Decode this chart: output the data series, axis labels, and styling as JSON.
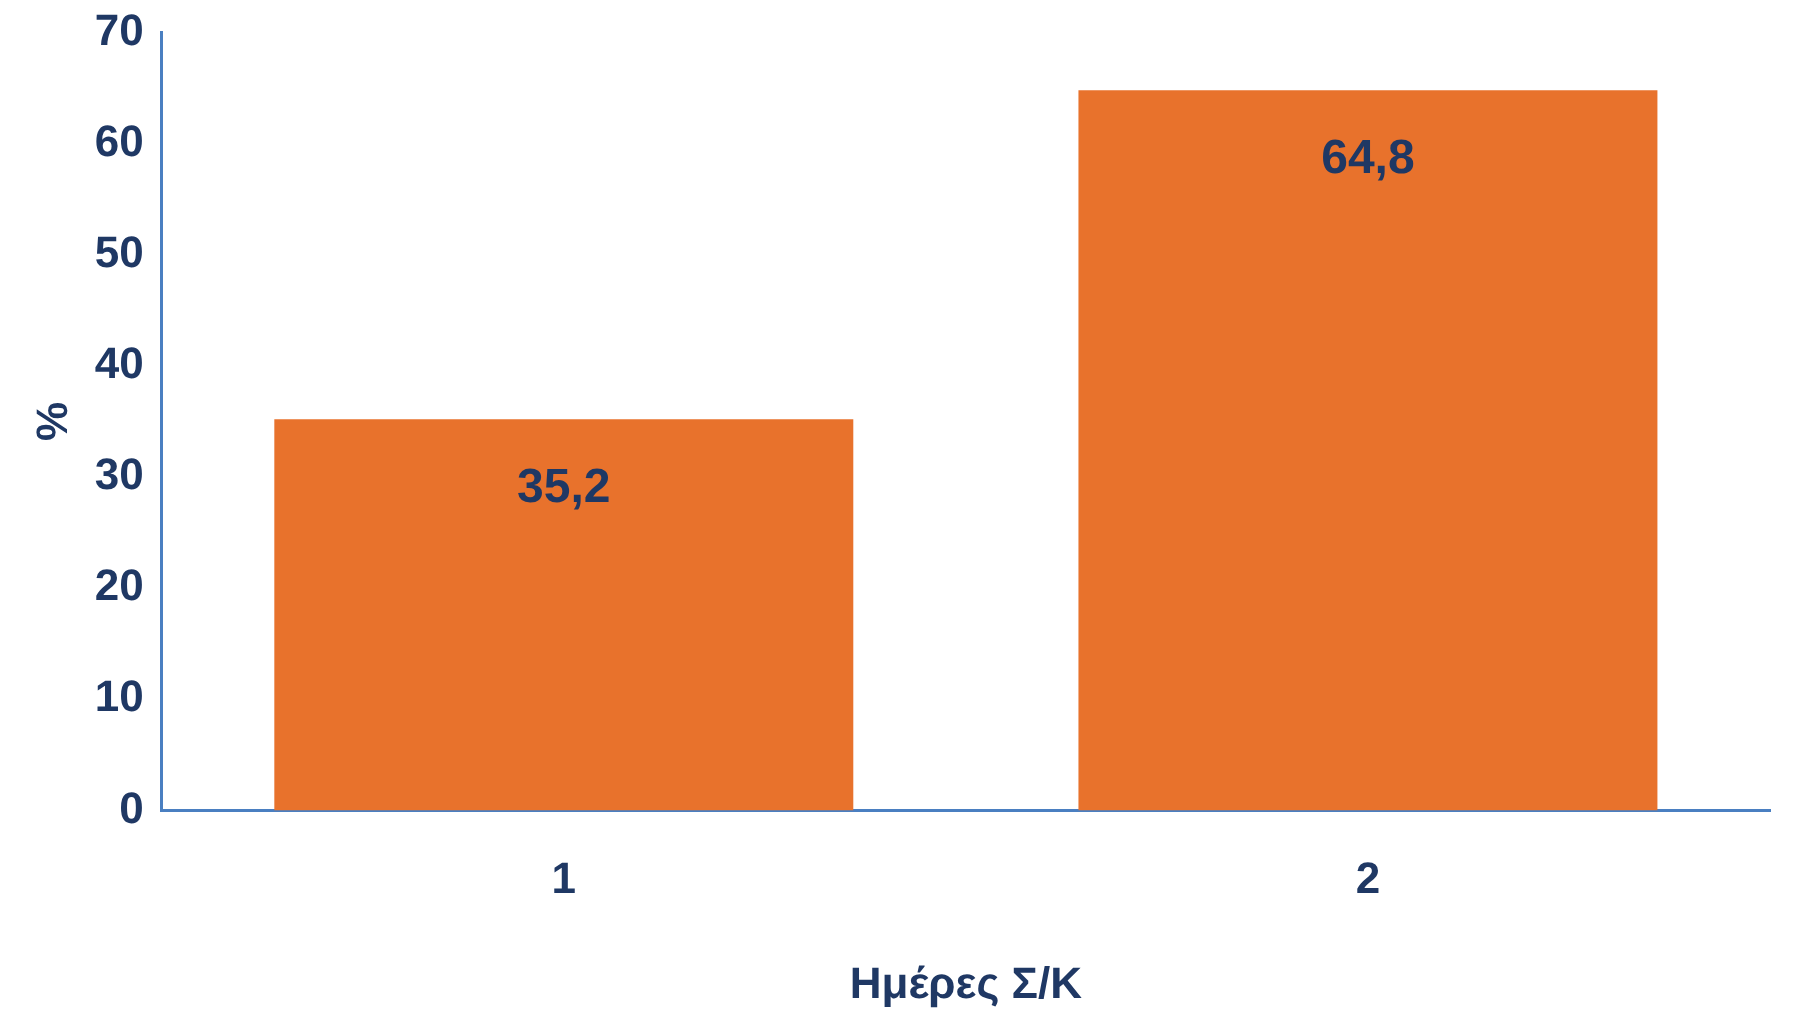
{
  "chart_data": {
    "type": "bar",
    "xlabel": "Ημέρες Σ/Κ",
    "ylabel": "%",
    "categories": [
      "1",
      "2"
    ],
    "values": [
      35.2,
      64.8
    ],
    "value_labels": [
      "35,2",
      "64,8"
    ],
    "color": "#e8722c",
    "ylim": [
      0,
      70
    ],
    "yticks": [
      0,
      10,
      20,
      30,
      40,
      50,
      60,
      70
    ],
    "grid": false,
    "legend": false
  }
}
